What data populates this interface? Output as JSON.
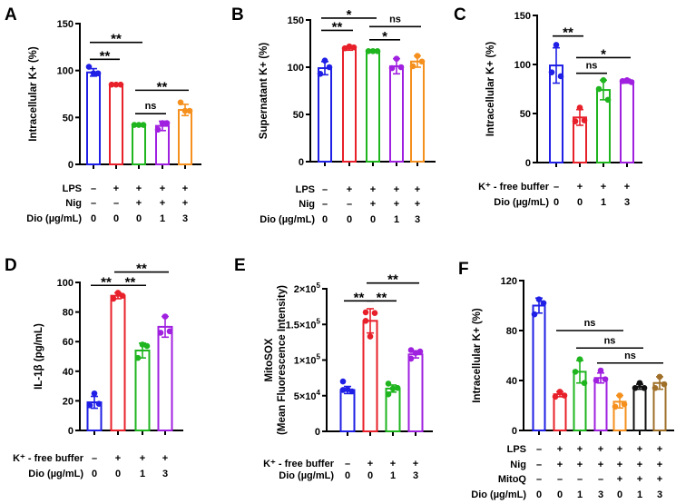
{
  "chart_data": [
    {
      "panel": "A",
      "type": "bar",
      "ylabel": [
        "Intracellular K+ (%)"
      ],
      "ylim": [
        0,
        150
      ],
      "yticks": [
        {
          "v": 0,
          "t": "0"
        },
        {
          "v": 50,
          "t": "50"
        },
        {
          "v": 100,
          "t": "100"
        },
        {
          "v": 150,
          "t": "150"
        }
      ],
      "values": [
        98,
        85,
        42,
        41,
        58
      ],
      "errors": [
        4,
        1,
        1,
        5,
        6
      ],
      "points": [
        [
          97,
          104,
          97
        ],
        [
          85,
          85,
          85
        ],
        [
          42,
          42,
          42
        ],
        [
          44,
          37,
          44
        ],
        [
          57,
          66,
          57
        ]
      ],
      "colors": [
        "#1f1fe6",
        "#e8202a",
        "#1fb51f",
        "#a020e0",
        "#f5901e"
      ],
      "conditions": [
        {
          "label": "LPS",
          "values": [
            "–",
            "+",
            "+",
            "+",
            "+"
          ]
        },
        {
          "label": "Nig",
          "values": [
            "–",
            "–",
            "+",
            "+",
            "+"
          ]
        },
        {
          "label": "Dio (µg/mL)",
          "values": [
            "0",
            "0",
            "0",
            "1",
            "3"
          ]
        }
      ],
      "comparisons": [
        {
          "from": 0,
          "to": 2,
          "y": 130,
          "label": "**"
        },
        {
          "from": 0,
          "to": 1,
          "y": 112,
          "label": "**"
        },
        {
          "from": 2,
          "to": 4,
          "y": 79,
          "label": "**"
        },
        {
          "from": 2,
          "to": 3,
          "y": 54,
          "label": "ns"
        }
      ]
    },
    {
      "panel": "B",
      "type": "bar",
      "ylabel": [
        "Supernatant K+ (%)"
      ],
      "ylim": [
        0,
        150
      ],
      "yticks": [
        {
          "v": 0,
          "t": "0"
        },
        {
          "v": 50,
          "t": "50"
        },
        {
          "v": 100,
          "t": "100"
        },
        {
          "v": 150,
          "t": "150"
        }
      ],
      "values": [
        99,
        120,
        117,
        101,
        106
      ],
      "errors": [
        7,
        2,
        1,
        8,
        6
      ],
      "points": [
        [
          107,
          93,
          100
        ],
        [
          122,
          120,
          121
        ],
        [
          117,
          117,
          117
        ],
        [
          109,
          99,
          100
        ],
        [
          112,
          101,
          106
        ]
      ],
      "colors": [
        "#1f1fe6",
        "#e8202a",
        "#1fb51f",
        "#a020e0",
        "#f5901e"
      ],
      "conditions": [
        {
          "label": "LPS",
          "values": [
            "–",
            "+",
            "+",
            "+",
            "+"
          ]
        },
        {
          "label": "Nig",
          "values": [
            "–",
            "–",
            "+",
            "+",
            "+"
          ]
        },
        {
          "label": "Dio (µg/mL)",
          "values": [
            "0",
            "0",
            "0",
            "1",
            "3"
          ]
        }
      ],
      "comparisons": [
        {
          "from": 0,
          "to": 2,
          "y": 152,
          "label": "*"
        },
        {
          "from": 0,
          "to": 1,
          "y": 139,
          "label": "**"
        },
        {
          "from": 2,
          "to": 4,
          "y": 143,
          "label": "ns"
        },
        {
          "from": 2,
          "to": 3,
          "y": 129,
          "label": "*"
        }
      ]
    },
    {
      "panel": "C",
      "type": "bar",
      "ylabel": [
        "Intracellular K+ (%)"
      ],
      "ylim": [
        0,
        150
      ],
      "yticks": [
        {
          "v": 0,
          "t": "0"
        },
        {
          "v": 50,
          "t": "50"
        },
        {
          "v": 100,
          "t": "100"
        },
        {
          "v": 150,
          "t": "150"
        }
      ],
      "values": [
        99,
        46,
        74,
        83
      ],
      "errors": [
        18,
        8,
        10,
        2
      ],
      "points": [
        [
          120,
          92,
          88
        ],
        [
          56,
          42,
          43
        ],
        [
          84,
          75,
          64
        ],
        [
          84,
          83,
          82
        ]
      ],
      "colors": [
        "#1f1fe6",
        "#e8202a",
        "#1fb51f",
        "#a020e0"
      ],
      "conditions": [
        {
          "label": "K⁺ - free buffer",
          "values": [
            "–",
            "+",
            "+",
            "+"
          ]
        },
        {
          "label": "Dio (µg/mL)",
          "values": [
            "0",
            "0",
            "1",
            "3"
          ]
        }
      ],
      "comparisons": [
        {
          "from": 0,
          "to": 1,
          "y": 129,
          "label": "**"
        },
        {
          "from": 1,
          "to": 3,
          "y": 107,
          "label": "*"
        },
        {
          "from": 1,
          "to": 2,
          "y": 91,
          "label": "ns"
        }
      ]
    },
    {
      "panel": "D",
      "type": "bar",
      "ylabel": [
        "IL-1β (pg/mL)"
      ],
      "ylim": [
        0,
        100
      ],
      "yticks": [
        {
          "v": 0,
          "t": "0"
        },
        {
          "v": 20,
          "t": "20"
        },
        {
          "v": 40,
          "t": "40"
        },
        {
          "v": 60,
          "t": "60"
        },
        {
          "v": 80,
          "t": "80"
        },
        {
          "v": 100,
          "t": "100"
        }
      ],
      "values": [
        19,
        91,
        54,
        70
      ],
      "errors": [
        4,
        2,
        5,
        7
      ],
      "points": [
        [
          25,
          17,
          18
        ],
        [
          93,
          89,
          91
        ],
        [
          58,
          49,
          57
        ],
        [
          77,
          66,
          67
        ]
      ],
      "colors": [
        "#1f1fe6",
        "#e8202a",
        "#1fb51f",
        "#a020e0"
      ],
      "conditions": [
        {
          "label": "K⁺ - free buffer",
          "values": [
            "–",
            "+",
            "+",
            "+"
          ]
        },
        {
          "label": "Dio (µg/mL)",
          "values": [
            "0",
            "0",
            "1",
            "3"
          ]
        }
      ],
      "comparisons": [
        {
          "from": 0,
          "to": 1,
          "y": 98,
          "label": "**"
        },
        {
          "from": 1,
          "to": 2,
          "y": 98,
          "label": "**"
        },
        {
          "from": 1,
          "to": 3,
          "y": 107,
          "label": "**"
        }
      ]
    },
    {
      "panel": "E",
      "type": "bar",
      "ylabel": [
        "MitoSOX",
        "(Mean Fluorescence Intensity)"
      ],
      "ylim": [
        0,
        200000
      ],
      "yticks": [
        {
          "v": 0,
          "t": "0"
        },
        {
          "v": 50000,
          "t": "5×10",
          "sup": "4"
        },
        {
          "v": 100000,
          "t": "1×10",
          "sup": "5"
        },
        {
          "v": 150000,
          "t": "1.5×10",
          "sup": "5"
        },
        {
          "v": 200000,
          "t": "2×10",
          "sup": "5"
        }
      ],
      "values": [
        58000,
        155000,
        60000,
        108000
      ],
      "errors": [
        5000,
        17000,
        5000,
        5000
      ],
      "points": [
        [
          70000,
          56000,
          58000,
          59000
        ],
        [
          167000,
          166000,
          155000,
          133000
        ],
        [
          67000,
          61000,
          52000,
          60000
        ],
        [
          114000,
          112000,
          102000,
          110000
        ]
      ],
      "colors": [
        "#1f1fe6",
        "#e8202a",
        "#1fb51f",
        "#a020e0"
      ],
      "conditions": [
        {
          "label": "K⁺ - free buffer",
          "values": [
            "–",
            "+",
            "+",
            "+"
          ]
        },
        {
          "label": "Dio (µg/mL)",
          "values": [
            "0",
            "0",
            "1",
            "3"
          ]
        }
      ],
      "comparisons": [
        {
          "from": 0,
          "to": 1,
          "y": 183000,
          "label": "**"
        },
        {
          "from": 1,
          "to": 2,
          "y": 183000,
          "label": "**"
        },
        {
          "from": 1,
          "to": 3,
          "y": 208000,
          "label": "**"
        }
      ]
    },
    {
      "panel": "F",
      "type": "bar",
      "ylabel": [
        "Intracellular K+ (%)"
      ],
      "ylim": [
        0,
        120
      ],
      "yticks": [
        {
          "v": 0,
          "t": "0"
        },
        {
          "v": 40,
          "t": "40"
        },
        {
          "v": 80,
          "t": "80"
        },
        {
          "v": 120,
          "t": "120"
        }
      ],
      "values": [
        100,
        29,
        47,
        42,
        23,
        35,
        38
      ],
      "errors": [
        6,
        2,
        9,
        4,
        5,
        2,
        5
      ],
      "points": [
        [
          105,
          93,
          102
        ],
        [
          31,
          27,
          28
        ],
        [
          57,
          47,
          38
        ],
        [
          48,
          40,
          41
        ],
        [
          28,
          19,
          21
        ],
        [
          38,
          34,
          34
        ],
        [
          43,
          34,
          37
        ]
      ],
      "colors": [
        "#1f1fe6",
        "#e8202a",
        "#1fb51f",
        "#a020e0",
        "#f5901e",
        "#111111",
        "#a0702a"
      ],
      "conditions": [
        {
          "label": "LPS",
          "values": [
            "–",
            "+",
            "+",
            "+",
            "+",
            "+",
            "+"
          ]
        },
        {
          "label": "Nig",
          "values": [
            "–",
            "+",
            "+",
            "+",
            "+",
            "+",
            "+"
          ]
        },
        {
          "label": "MitoQ",
          "values": [
            "–",
            "–",
            "–",
            "–",
            "+",
            "+",
            "+"
          ]
        },
        {
          "label": "Dio (µg/mL)",
          "values": [
            "0",
            "0",
            "1",
            "3",
            "0",
            "1",
            "3"
          ]
        }
      ],
      "comparisons": [
        {
          "from": 1,
          "to": 4,
          "y": 80,
          "label": "ns"
        },
        {
          "from": 2,
          "to": 5,
          "y": 66,
          "label": "ns"
        },
        {
          "from": 3,
          "to": 6,
          "y": 54,
          "label": "ns"
        }
      ]
    }
  ]
}
